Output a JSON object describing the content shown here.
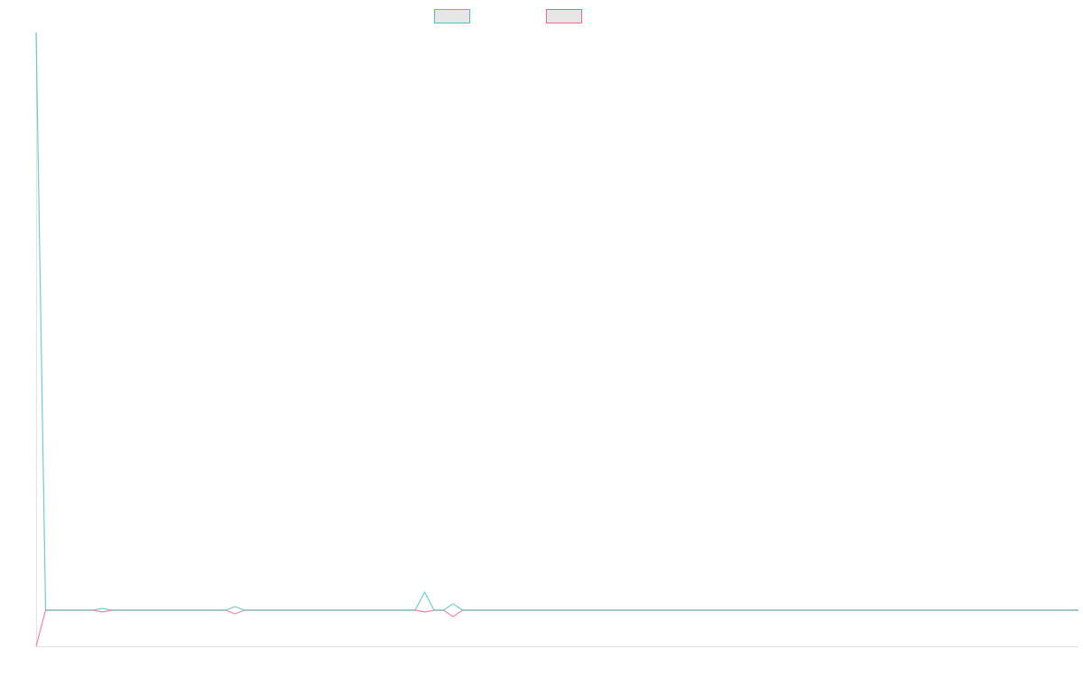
{
  "chart_data": {
    "type": "line",
    "title": "",
    "xlabel": "",
    "ylabel": "",
    "x_count": 111,
    "ylim": [
      -1,
      16
    ],
    "grid": false,
    "legend_position": "top",
    "series": [
      {
        "color": "#4bc0c0",
        "legend_fill": "#e6e6e6",
        "points": [
          [
            0,
            16
          ],
          [
            1,
            0
          ],
          [
            6,
            0
          ],
          [
            7,
            0.05
          ],
          [
            8,
            0
          ],
          [
            20,
            0
          ],
          [
            21,
            0.1
          ],
          [
            22,
            0
          ],
          [
            40,
            0
          ],
          [
            41,
            0.5
          ],
          [
            42,
            0
          ],
          [
            43,
            0
          ],
          [
            44,
            0.18
          ],
          [
            45,
            0
          ],
          [
            110,
            0
          ]
        ]
      },
      {
        "color": "#ff6384",
        "legend_fill": "#e6e6e6",
        "points": [
          [
            0,
            -1
          ],
          [
            1,
            0
          ],
          [
            6,
            0
          ],
          [
            7,
            -0.05
          ],
          [
            8,
            0
          ],
          [
            20,
            0
          ],
          [
            21,
            -0.1
          ],
          [
            22,
            0
          ],
          [
            40,
            0
          ],
          [
            41,
            -0.05
          ],
          [
            42,
            0
          ],
          [
            43,
            0
          ],
          [
            44,
            -0.18
          ],
          [
            45,
            0
          ],
          [
            110,
            0
          ]
        ]
      }
    ]
  }
}
